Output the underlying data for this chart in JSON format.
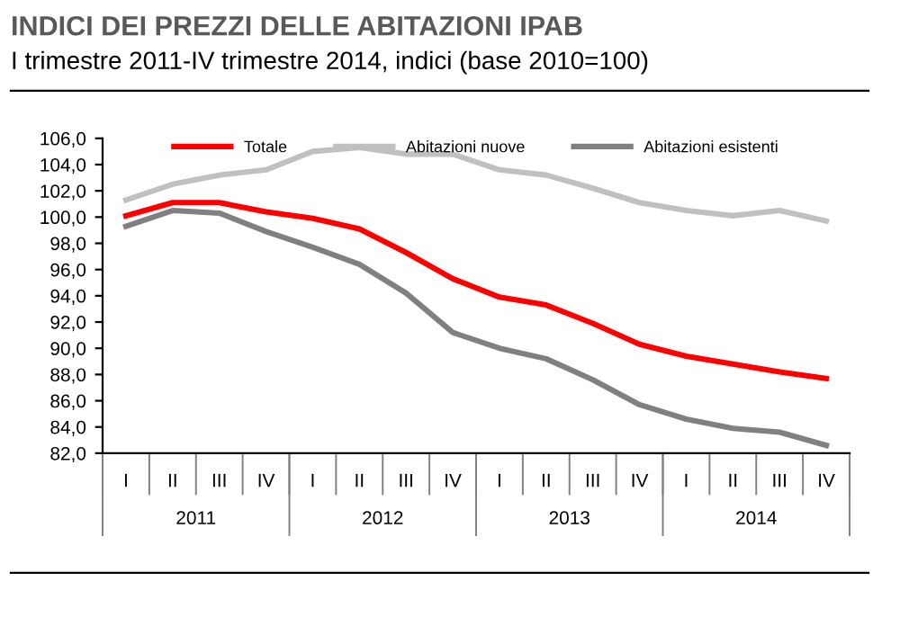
{
  "chart_data": {
    "type": "line",
    "title": "INDICI DEI PREZZI DELLE ABITAZIONI IPAB",
    "subtitle": "I trimestre 2011-IV trimestre 2014, indici (base 2010=100)",
    "categories": [
      "I",
      "II",
      "III",
      "IV",
      "I",
      "II",
      "III",
      "IV",
      "I",
      "II",
      "III",
      "IV",
      "I",
      "II",
      "III",
      "IV"
    ],
    "annotations": [
      "2011",
      "2012",
      "2013",
      "2014"
    ],
    "series": [
      {
        "name": "Totale",
        "color": "#ff0000",
        "values": [
          100.1,
          101.1,
          101.1,
          100.4,
          99.9,
          99.1,
          97.3,
          95.3,
          93.9,
          93.3,
          91.9,
          90.3,
          89.4,
          88.8,
          88.2,
          87.7
        ]
      },
      {
        "name": "Abitazioni nuove",
        "color": "#c0c0c0",
        "values": [
          101.3,
          102.5,
          103.2,
          103.6,
          105.0,
          105.3,
          104.8,
          104.8,
          103.6,
          103.2,
          102.2,
          101.1,
          100.5,
          100.1,
          100.5,
          99.7
        ]
      },
      {
        "name": "Abitazioni esistenti",
        "color": "#808080",
        "values": [
          99.3,
          100.5,
          100.3,
          98.9,
          97.7,
          96.4,
          94.2,
          91.2,
          90.0,
          89.2,
          87.6,
          85.7,
          84.6,
          83.9,
          83.6,
          82.6
        ]
      }
    ],
    "ylim": [
      82,
      106
    ],
    "yticks": [
      {
        "value": 82,
        "label": "82,0"
      },
      {
        "value": 84,
        "label": "84,0"
      },
      {
        "value": 86,
        "label": "86,0"
      },
      {
        "value": 88,
        "label": "88,0"
      },
      {
        "value": 90,
        "label": "90,0"
      },
      {
        "value": 92,
        "label": "92,0"
      },
      {
        "value": 94,
        "label": "94,0"
      },
      {
        "value": 96,
        "label": "96,0"
      },
      {
        "value": 98,
        "label": "98,0"
      },
      {
        "value": 100,
        "label": "100,0"
      },
      {
        "value": 102,
        "label": "102,0"
      },
      {
        "value": 104,
        "label": "104,0"
      },
      {
        "value": 106,
        "label": "106,0"
      }
    ],
    "legend": "top",
    "grid": false,
    "marker": "none",
    "line_style": "solid"
  }
}
